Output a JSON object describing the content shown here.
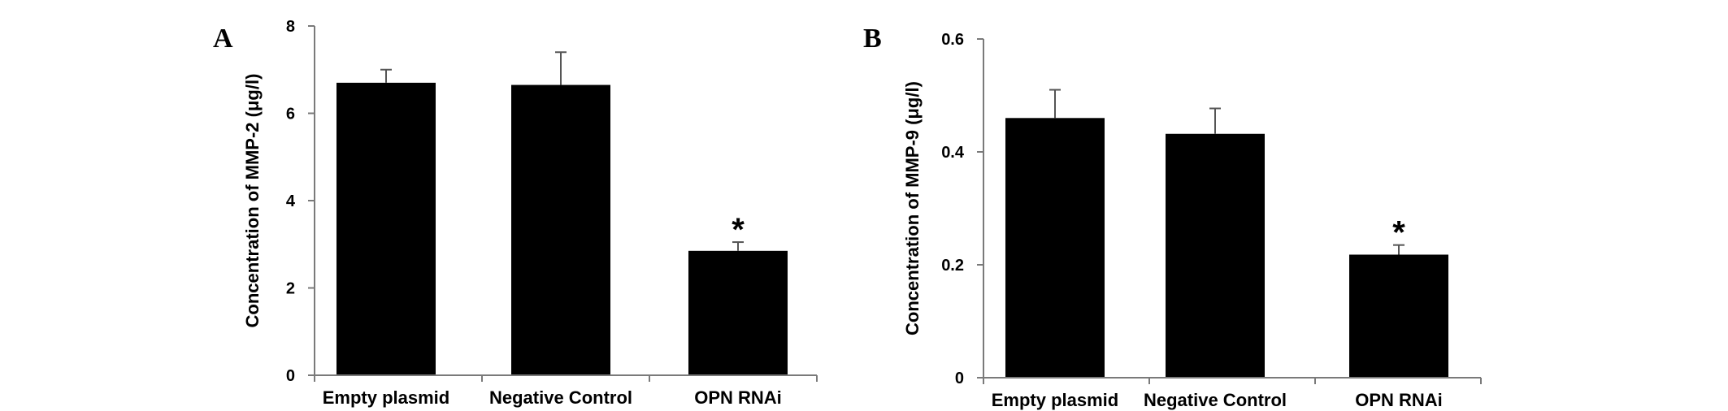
{
  "chart_data": [
    {
      "panel": "A",
      "type": "bar",
      "categories": [
        "Empty plasmid",
        "Negative Control",
        "OPN RNAi"
      ],
      "values": [
        6.7,
        6.65,
        2.85
      ],
      "errors": [
        0.3,
        0.75,
        0.2
      ],
      "significance": [
        "",
        "",
        "*"
      ],
      "ylabel": "Concentration of MMP-2 (μg/l)",
      "xlabel": "",
      "ylim": [
        0,
        8
      ],
      "yticks": [
        "0",
        "2",
        "4",
        "6",
        "8"
      ],
      "bar_color": "#000000",
      "grid": false
    },
    {
      "panel": "B",
      "type": "bar",
      "categories": [
        "Empty plasmid",
        "Negative Control",
        "OPN RNAi"
      ],
      "values": [
        0.46,
        0.432,
        0.218
      ],
      "errors": [
        0.05,
        0.045,
        0.017
      ],
      "significance": [
        "",
        "",
        "*"
      ],
      "ylabel": "Concentration of MMP-9 (μg/l)",
      "xlabel": "",
      "ylim": [
        0,
        0.6
      ],
      "yticks": [
        "0",
        "0.2",
        "0.4",
        "0.6"
      ],
      "bar_color": "#000000",
      "grid": false
    }
  ]
}
